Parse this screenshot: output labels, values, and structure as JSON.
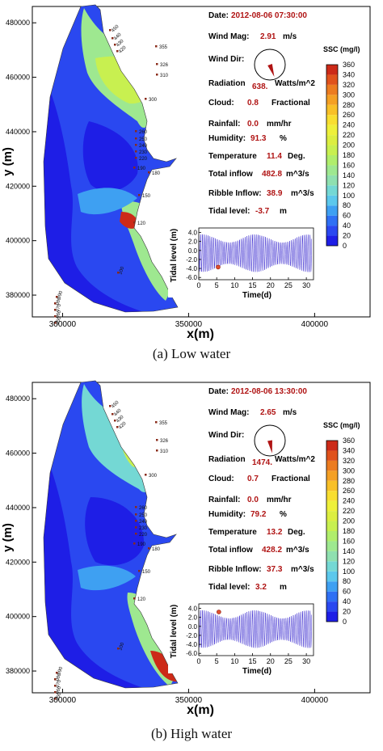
{
  "chart_data": [
    {
      "type": "heatmap",
      "panel": "a",
      "caption": "(a)  Low water",
      "xlabel": "x(m)",
      "ylabel": "y (m)",
      "xlim": [
        288000,
        422000
      ],
      "ylim": [
        372000,
        486000
      ],
      "x_ticks": [
        300000,
        350000,
        400000
      ],
      "x_tick_labels": [
        "300000",
        "350000",
        "400000"
      ],
      "y_ticks": [
        380000,
        400000,
        420000,
        440000,
        460000,
        480000
      ],
      "y_tick_labels": [
        "380000",
        "400000",
        "420000",
        "440000",
        "460000",
        "480000"
      ],
      "info": {
        "date_label": "Date:",
        "date_value": "2012-08-06 07:30:00",
        "wind_mag_label": "Wind Mag:",
        "wind_mag_value": "2.91",
        "wind_mag_unit": "m/s",
        "wind_dir_label": "Wind Dir:",
        "wind_dir_deg": 160,
        "radiation_label": "Radiation",
        "radiation_value": "638.",
        "radiation_unit": "Watts/m^2",
        "cloud_label": "Cloud:",
        "cloud_value": "0.8",
        "cloud_unit": "Fractional",
        "rainfall_label": "Rainfall:",
        "rainfall_value": "0.0",
        "rainfall_unit": "mm/hr",
        "humidity_label": "Humidity:",
        "humidity_value": "91.3",
        "humidity_unit": "%",
        "temperature_label": "Temperature",
        "temperature_value": "11.4",
        "temperature_unit": "Deg.",
        "inflow_label": "Total inflow",
        "inflow_value": "482.8",
        "inflow_unit": "m^3/s",
        "ribble_label": "Ribble Inflow:",
        "ribble_value": "38.9",
        "ribble_unit": "m^3/s",
        "tidal_label": "Tidal level:",
        "tidal_value": "-3.7",
        "tidal_unit": "m"
      },
      "colorbar": {
        "title": "SSC (mg/l)",
        "levels": [
          0,
          20,
          40,
          60,
          80,
          100,
          120,
          140,
          160,
          180,
          200,
          220,
          240,
          260,
          280,
          300,
          320,
          340,
          360
        ],
        "labels": [
          "0",
          "20",
          "40",
          "60",
          "80",
          "100",
          "120",
          "140",
          "160",
          "180",
          "200",
          "220",
          "240",
          "260",
          "280",
          "300",
          "320",
          "340",
          "360"
        ],
        "colors": [
          "#1e1ee6",
          "#2a48f0",
          "#2f70f4",
          "#3ea0f2",
          "#5cc8ec",
          "#74d8d4",
          "#8fe0b0",
          "#9ee890",
          "#b0ee6c",
          "#c8f050",
          "#dcee40",
          "#eef03a",
          "#f8de30",
          "#f8c028",
          "#f4a024",
          "#ec7c20",
          "#e0521c",
          "#cc2a18",
          "#b01414"
        ]
      },
      "station_labels": [
        "450",
        "440",
        "430",
        "420",
        "355",
        "326",
        "310",
        "300",
        "260",
        "250",
        "240",
        "230",
        "220",
        "190",
        "180",
        "150",
        "120",
        "100",
        "090",
        "080",
        "070",
        "060",
        "050"
      ],
      "inset": {
        "ylabel": "Tidal level (m)",
        "xlabel": "Time(d)",
        "x_ticks": [
          0,
          5,
          10,
          15,
          20,
          25,
          30
        ],
        "y_ticks": [
          -6,
          -4,
          -2,
          0,
          2,
          4
        ],
        "y_tick_labels": [
          "-6.0",
          "-4.0",
          "-2.0",
          "0.0",
          "2.0",
          "4.0"
        ],
        "xlim": [
          0,
          32
        ],
        "ylim": [
          -6.5,
          5.0
        ],
        "period_days": 0.517,
        "amp_max": 4.2,
        "amp_min": 2.4,
        "spring_neap_days": 14.8,
        "marker_day": 5.4,
        "marker_level": -3.7
      }
    },
    {
      "type": "heatmap",
      "panel": "b",
      "caption": "(b)  High water",
      "xlabel": "x(m)",
      "ylabel": "y (m)",
      "xlim": [
        288000,
        422000
      ],
      "ylim": [
        372000,
        486000
      ],
      "x_ticks": [
        300000,
        350000,
        400000
      ],
      "x_tick_labels": [
        "300000",
        "350000",
        "400000"
      ],
      "y_ticks": [
        380000,
        400000,
        420000,
        440000,
        460000,
        480000
      ],
      "y_tick_labels": [
        "380000",
        "400000",
        "420000",
        "440000",
        "460000",
        "480000"
      ],
      "info": {
        "date_label": "Date:",
        "date_value": "2012-08-06 13:30:00",
        "wind_mag_label": "Wind Mag:",
        "wind_mag_value": "2.65",
        "wind_mag_unit": "m/s",
        "wind_dir_label": "Wind Dir:",
        "wind_dir_deg": 170,
        "radiation_label": "Radiation",
        "radiation_value": "1474.",
        "radiation_unit": "Watts/m^2",
        "cloud_label": "Cloud:",
        "cloud_value": "0.7",
        "cloud_unit": "Fractional",
        "rainfall_label": "Rainfall:",
        "rainfall_value": "0.0",
        "rainfall_unit": "mm/hr",
        "humidity_label": "Humidity:",
        "humidity_value": "79.2",
        "humidity_unit": "%",
        "temperature_label": "Temperature",
        "temperature_value": "13.2",
        "temperature_unit": "Deg.",
        "inflow_label": "Total inflow",
        "inflow_value": "428.2",
        "inflow_unit": "m^3/s",
        "ribble_label": "Ribble Inflow:",
        "ribble_value": "37.3",
        "ribble_unit": "m^3/s",
        "tidal_label": "Tidal level:",
        "tidal_value": "3.2",
        "tidal_unit": "m"
      },
      "colorbar": {
        "title": "SSC (mg/l)",
        "levels": [
          0,
          20,
          40,
          60,
          80,
          100,
          120,
          140,
          160,
          180,
          200,
          220,
          240,
          260,
          280,
          300,
          320,
          340,
          360
        ],
        "labels": [
          "0",
          "20",
          "40",
          "60",
          "80",
          "100",
          "120",
          "140",
          "160",
          "180",
          "200",
          "220",
          "240",
          "260",
          "280",
          "300",
          "320",
          "340",
          "360"
        ],
        "colors": [
          "#1e1ee6",
          "#2a48f0",
          "#2f70f4",
          "#3ea0f2",
          "#5cc8ec",
          "#74d8d4",
          "#8fe0b0",
          "#9ee890",
          "#b0ee6c",
          "#c8f050",
          "#dcee40",
          "#eef03a",
          "#f8de30",
          "#f8c028",
          "#f4a024",
          "#ec7c20",
          "#e0521c",
          "#cc2a18",
          "#b01414"
        ]
      },
      "station_labels": [
        "450",
        "440",
        "430",
        "420",
        "355",
        "326",
        "310",
        "300",
        "260",
        "250",
        "240",
        "230",
        "220",
        "190",
        "180",
        "150",
        "120",
        "100",
        "090",
        "080",
        "070",
        "060",
        "050"
      ],
      "inset": {
        "ylabel": "Tidal level (m)",
        "xlabel": "Time(d)",
        "x_ticks": [
          0,
          5,
          10,
          15,
          20,
          25,
          30
        ],
        "y_ticks": [
          -6,
          -4,
          -2,
          0,
          2,
          4
        ],
        "y_tick_labels": [
          "-6.0",
          "-4.0",
          "-2.0",
          "0.0",
          "2.0",
          "4.0"
        ],
        "xlim": [
          0,
          32
        ],
        "ylim": [
          -6.5,
          5.0
        ],
        "period_days": 0.517,
        "amp_max": 4.2,
        "amp_min": 2.4,
        "spring_neap_days": 14.8,
        "marker_day": 5.6,
        "marker_level": 3.2
      }
    }
  ]
}
